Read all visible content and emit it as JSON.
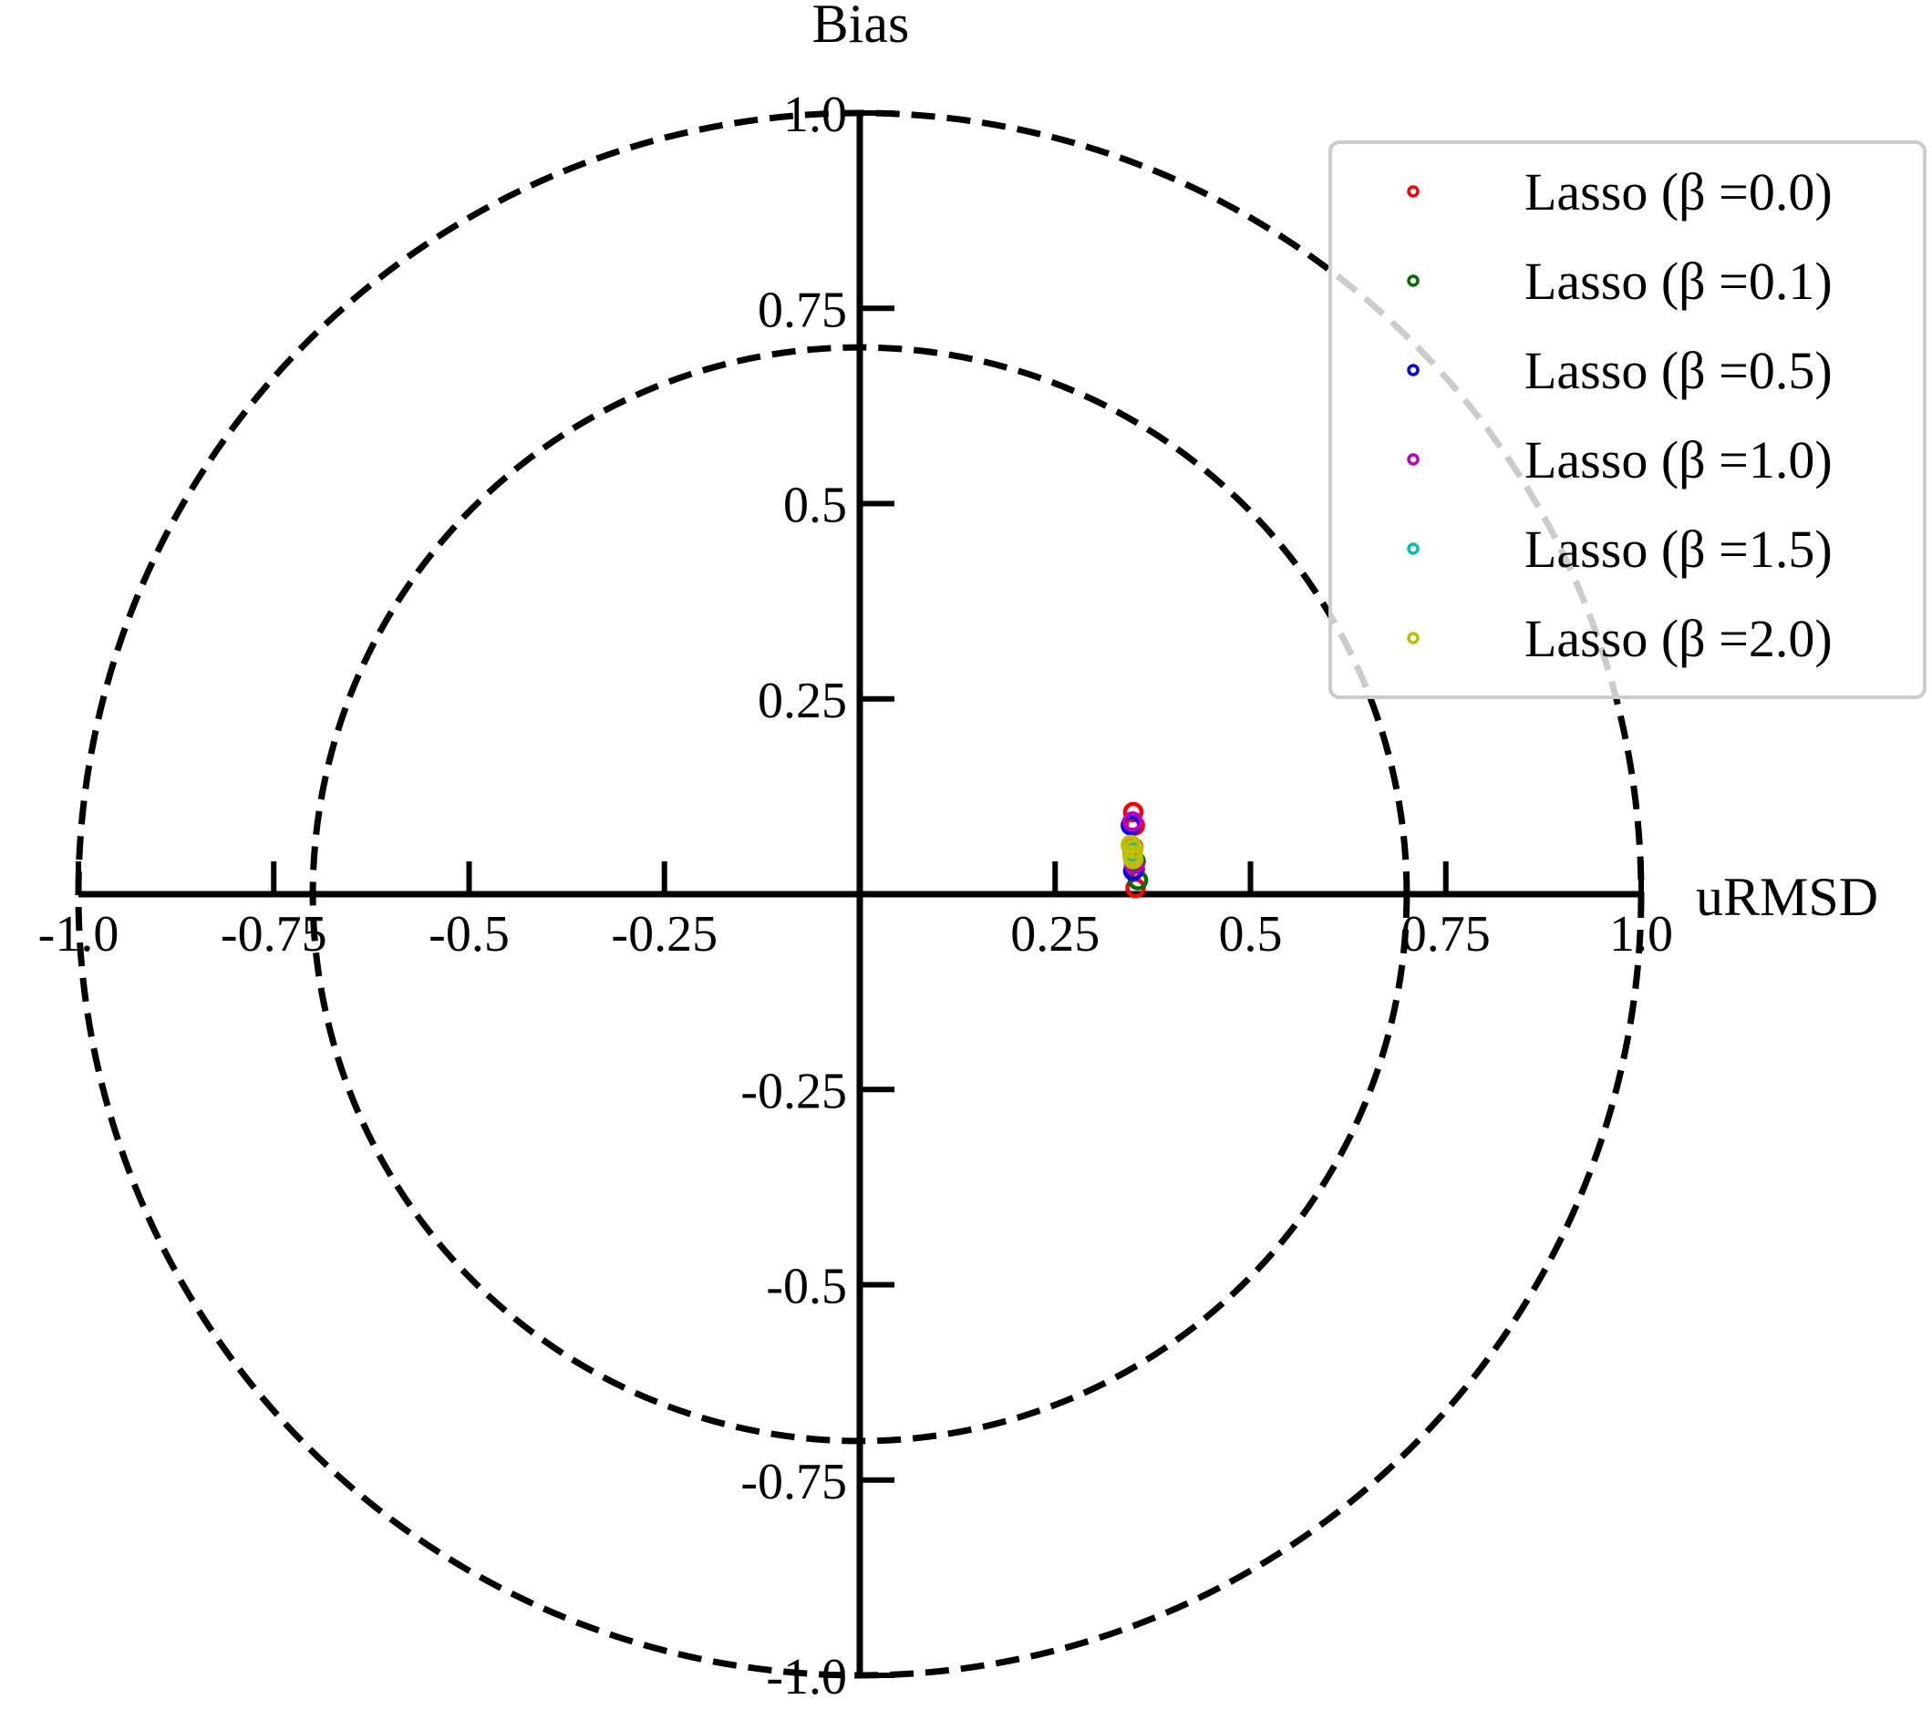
{
  "chart_data": {
    "type": "scatter",
    "title": "",
    "xlabel": "uRMSD",
    "ylabel": "Bias",
    "xlim": [
      -1.0,
      1.0
    ],
    "ylim": [
      -1.0,
      1.0
    ],
    "grid": false,
    "legend_placement": "top-right",
    "reference_circles": [
      0.7,
      1.0
    ],
    "x_ticks": [
      {
        "value": -1.0,
        "label": "-1.0"
      },
      {
        "value": -0.75,
        "label": "-0.75"
      },
      {
        "value": -0.5,
        "label": "-0.5"
      },
      {
        "value": -0.25,
        "label": "-0.25"
      },
      {
        "value": 0.25,
        "label": "0.25"
      },
      {
        "value": 0.5,
        "label": "0.5"
      },
      {
        "value": 0.75,
        "label": "0.75"
      },
      {
        "value": 1.0,
        "label": "1.0"
      }
    ],
    "y_ticks": [
      {
        "value": 1.0,
        "label": "1.0"
      },
      {
        "value": 0.75,
        "label": "0.75"
      },
      {
        "value": 0.5,
        "label": "0.5"
      },
      {
        "value": 0.25,
        "label": "0.25"
      },
      {
        "value": -0.25,
        "label": "-0.25"
      },
      {
        "value": -0.5,
        "label": "-0.5"
      },
      {
        "value": -0.75,
        "label": "-0.75"
      },
      {
        "value": -1.0,
        "label": "-1.0"
      }
    ],
    "series": [
      {
        "name": "Lasso (β =0.0)",
        "color": "#ff0000",
        "points": [
          [
            0.35,
            0.105
          ],
          [
            0.352,
            0.088
          ],
          [
            0.35,
            0.06
          ],
          [
            0.352,
            0.032
          ],
          [
            0.353,
            0.008
          ]
        ]
      },
      {
        "name": "Lasso (β =0.1)",
        "color": "#007000",
        "points": [
          [
            0.353,
            0.042
          ],
          [
            0.356,
            0.018
          ]
        ]
      },
      {
        "name": "Lasso (β =0.5)",
        "color": "#0000ff",
        "points": [
          [
            0.347,
            0.088
          ],
          [
            0.35,
            0.03
          ]
        ]
      },
      {
        "name": "Lasso (β =1.0)",
        "color": "#c000c0",
        "points": [
          [
            0.349,
            0.093
          ],
          [
            0.351,
            0.038
          ]
        ]
      },
      {
        "name": "Lasso (β =1.5)",
        "color": "#00bfbf",
        "points": [
          [
            0.349,
            0.055
          ]
        ]
      },
      {
        "name": "Lasso (β =2.0)",
        "color": "#bfbf00",
        "points": [
          [
            0.347,
            0.063
          ],
          [
            0.35,
            0.058
          ],
          [
            0.349,
            0.05
          ],
          [
            0.35,
            0.045
          ]
        ]
      }
    ]
  }
}
